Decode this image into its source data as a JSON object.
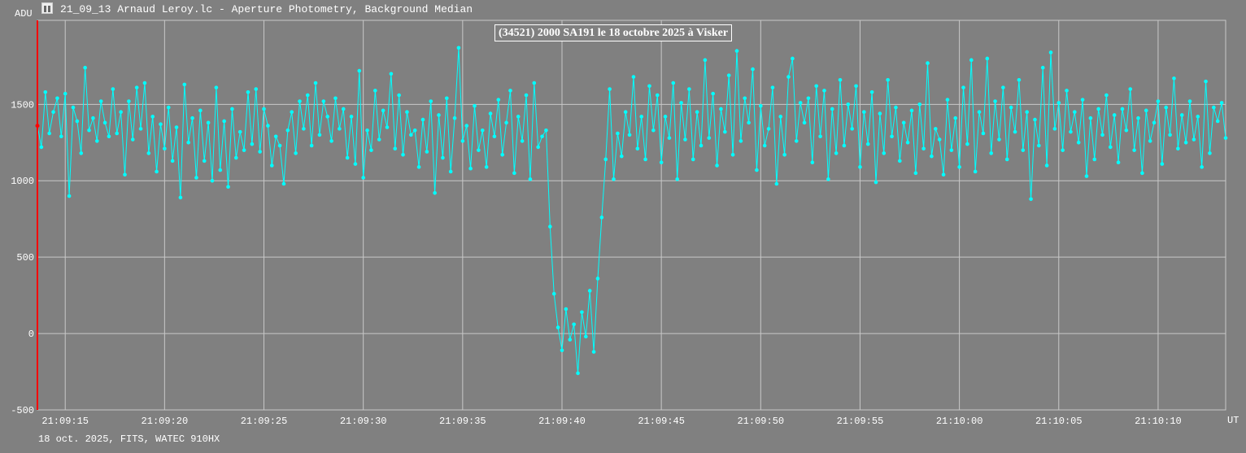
{
  "window": {
    "title": "21_09_13 Arnaud Leroy.lc - Aperture Photometry, Background Median",
    "icon": "app-icon"
  },
  "footer": "18 oct. 2025, FITS, WATEC 910HX",
  "chart_data": {
    "type": "line",
    "title": "(34521) 2000 SA191 le 18 octobre 2025 à Visker",
    "ylabel": "ADU",
    "xlabel": "UT",
    "ylim": [
      -500,
      2050
    ],
    "yticks": [
      -500,
      0,
      500,
      1000,
      1500
    ],
    "ytick_labels": [
      "-500",
      "0",
      "500",
      "1000",
      "1500"
    ],
    "xlim_seconds_after_21_09_00": [
      13.6,
      73.4
    ],
    "xticks_seconds": [
      15,
      20,
      25,
      30,
      35,
      40,
      45,
      50,
      55,
      60,
      65,
      70
    ],
    "xtick_labels": [
      "21:09:15",
      "21:09:20",
      "21:09:25",
      "21:09:30",
      "21:09:35",
      "21:09:40",
      "21:09:45",
      "21:09:50",
      "21:09:55",
      "21:10:00",
      "21:10:05",
      "21:10:10"
    ],
    "grid": true,
    "series": [
      {
        "name": "Aperture Photometry",
        "color": "#00ffff",
        "x_start_seconds": 13.6,
        "x_step_seconds": 0.2,
        "values": [
          1360,
          1220,
          1580,
          1310,
          1450,
          1540,
          1290,
          1570,
          900,
          1480,
          1390,
          1180,
          1740,
          1330,
          1410,
          1260,
          1520,
          1380,
          1290,
          1600,
          1310,
          1450,
          1040,
          1520,
          1270,
          1610,
          1340,
          1640,
          1180,
          1420,
          1060,
          1370,
          1210,
          1480,
          1130,
          1350,
          890,
          1630,
          1250,
          1410,
          1020,
          1460,
          1130,
          1380,
          1000,
          1610,
          1070,
          1390,
          960,
          1470,
          1150,
          1320,
          1200,
          1580,
          1240,
          1600,
          1190,
          1470,
          1360,
          1100,
          1290,
          1230,
          980,
          1330,
          1450,
          1180,
          1520,
          1340,
          1560,
          1230,
          1640,
          1300,
          1520,
          1420,
          1260,
          1540,
          1340,
          1470,
          1150,
          1420,
          1110,
          1720,
          1020,
          1330,
          1200,
          1590,
          1270,
          1460,
          1350,
          1700,
          1210,
          1560,
          1170,
          1450,
          1300,
          1330,
          1090,
          1400,
          1190,
          1520,
          920,
          1430,
          1150,
          1540,
          1060,
          1410,
          1870,
          1260,
          1360,
          1080,
          1490,
          1200,
          1330,
          1090,
          1440,
          1290,
          1530,
          1170,
          1380,
          1590,
          1050,
          1420,
          1260,
          1560,
          1010,
          1640,
          1220,
          1290,
          1330,
          700,
          260,
          40,
          -110,
          160,
          -40,
          60,
          -260,
          140,
          -20,
          280,
          -120,
          360,
          760,
          1140,
          1600,
          1010,
          1310,
          1160,
          1450,
          1300,
          1680,
          1210,
          1420,
          1140,
          1620,
          1330,
          1560,
          1120,
          1420,
          1280,
          1640,
          1010,
          1510,
          1270,
          1600,
          1140,
          1450,
          1230,
          1790,
          1280,
          1570,
          1100,
          1470,
          1320,
          1690,
          1170,
          1850,
          1260,
          1540,
          1380,
          1730,
          1070,
          1490,
          1230,
          1340,
          1610,
          980,
          1420,
          1170,
          1680,
          1800,
          1260,
          1510,
          1380,
          1540,
          1120,
          1620,
          1290,
          1590,
          1010,
          1470,
          1180,
          1660,
          1230,
          1500,
          1340,
          1620,
          1090,
          1450,
          1240,
          1580,
          990,
          1440,
          1180,
          1660,
          1290,
          1480,
          1130,
          1380,
          1250,
          1460,
          1050,
          1500,
          1210,
          1770,
          1160,
          1340,
          1270,
          1040,
          1530,
          1200,
          1410,
          1090,
          1610,
          1240,
          1790,
          1060,
          1450,
          1310,
          1800,
          1180,
          1520,
          1270,
          1610,
          1140,
          1480,
          1320,
          1660,
          1200,
          1450,
          880,
          1400,
          1230,
          1740,
          1100,
          1840,
          1340,
          1510,
          1200,
          1590,
          1320,
          1450,
          1250,
          1530,
          1030,
          1410,
          1140,
          1470,
          1300,
          1560,
          1220,
          1430,
          1120,
          1470,
          1330,
          1600,
          1200,
          1410,
          1050,
          1460,
          1260,
          1380,
          1520,
          1110,
          1480,
          1300,
          1670,
          1210,
          1430,
          1250,
          1520,
          1270,
          1420,
          1090,
          1650,
          1180,
          1480,
          1390,
          1510,
          1280
        ]
      }
    ],
    "cursor": {
      "color": "#ff0000",
      "value": 1360
    }
  }
}
